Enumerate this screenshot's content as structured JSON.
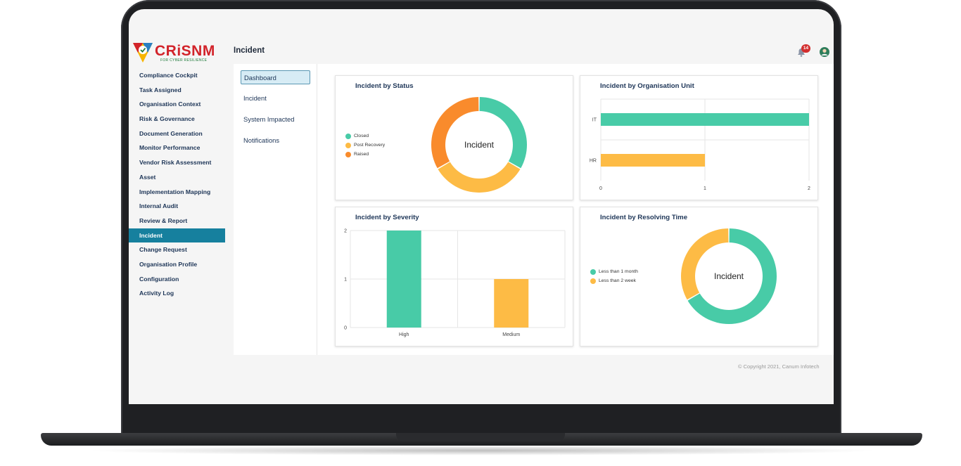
{
  "app": {
    "logo_text": "CRiSNM",
    "logo_sub": "FOR CYBER RESILIENCE",
    "page_title": "Incident",
    "notification_count": "14",
    "footer": "© Copyright 2021, Canum Infotech"
  },
  "sidebar": {
    "items": [
      {
        "label": "Compliance Cockpit"
      },
      {
        "label": "Task Assigned"
      },
      {
        "label": "Organisation Context"
      },
      {
        "label": "Risk & Governance"
      },
      {
        "label": "Document Generation"
      },
      {
        "label": "Monitor Performance"
      },
      {
        "label": "Vendor Risk Assessment"
      },
      {
        "label": "Asset"
      },
      {
        "label": "Implementation Mapping"
      },
      {
        "label": "Internal Audit"
      },
      {
        "label": "Review & Report"
      },
      {
        "label": "Incident"
      },
      {
        "label": "Change Request"
      },
      {
        "label": "Organisation Profile"
      },
      {
        "label": "Configuration"
      },
      {
        "label": "Activity Log"
      }
    ],
    "active_index": 11
  },
  "subnav": {
    "items": [
      {
        "label": "Dashboard"
      },
      {
        "label": "Incident"
      },
      {
        "label": "System Impacted"
      },
      {
        "label": "Notifications"
      }
    ],
    "active_index": 0
  },
  "colors": {
    "green": "#48cba7",
    "yellow": "#fdbb45",
    "orange": "#f98b2c",
    "accent": "#16809e"
  },
  "chart_data": [
    {
      "type": "pie",
      "title": "Incident by Status",
      "center_label": "Incident",
      "labels": [
        "Closed",
        "Post Recovery",
        "Raised"
      ],
      "values": [
        1,
        1,
        1
      ],
      "colors": [
        "#48cba7",
        "#fdbb45",
        "#f98b2c"
      ],
      "legend": "left"
    },
    {
      "type": "bar",
      "orientation": "horizontal",
      "title": "Incident by Organisation Unit",
      "categories": [
        "IT",
        "HR"
      ],
      "values": [
        2,
        1
      ],
      "colors": [
        "#48cba7",
        "#fdbb45"
      ],
      "xlim": [
        0,
        2
      ],
      "xticks": [
        "0",
        "1",
        "2"
      ],
      "grid": true
    },
    {
      "type": "bar",
      "title": "Incident by Severity",
      "categories": [
        "High",
        "Medium"
      ],
      "values": [
        2,
        1
      ],
      "colors": [
        "#48cba7",
        "#fdbb45"
      ],
      "ylim": [
        0,
        2
      ],
      "yticks": [
        "0",
        "1",
        "2"
      ],
      "grid": true
    },
    {
      "type": "pie",
      "title": "Incident by Resolving Time",
      "center_label": "Incident",
      "labels": [
        "Less than 1 month",
        "Less than 2 week"
      ],
      "values": [
        2,
        1
      ],
      "colors": [
        "#48cba7",
        "#fdbb45"
      ],
      "legend": "left"
    }
  ]
}
